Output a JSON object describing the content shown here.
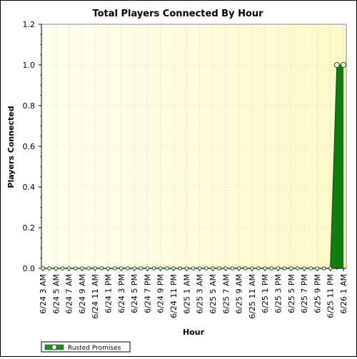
{
  "chart_data": {
    "type": "area",
    "title": "Total Players Connected By Hour",
    "xlabel": "Hour",
    "ylabel": "Players Connected",
    "categories": [
      "6/24 3 AM",
      "6/24 4 AM",
      "6/24 5 AM",
      "6/24 6 AM",
      "6/24 7 AM",
      "6/24 8 AM",
      "6/24 9 AM",
      "6/24 10 AM",
      "6/24 11 AM",
      "6/24 12 PM",
      "6/24 1 PM",
      "6/24 2 PM",
      "6/24 3 PM",
      "6/24 4 PM",
      "6/24 5 PM",
      "6/24 6 PM",
      "6/24 7 PM",
      "6/24 8 PM",
      "6/24 9 PM",
      "6/24 10 PM",
      "6/24 11 PM",
      "6/25 12 AM",
      "6/25 1 AM",
      "6/25 2 AM",
      "6/25 3 AM",
      "6/25 4 AM",
      "6/25 5 AM",
      "6/25 6 AM",
      "6/25 7 AM",
      "6/25 8 AM",
      "6/25 9 AM",
      "6/25 10 AM",
      "6/25 11 AM",
      "6/25 12 PM",
      "6/25 1 PM",
      "6/25 2 PM",
      "6/25 3 PM",
      "6/25 4 PM",
      "6/25 5 PM",
      "6/25 6 PM",
      "6/25 7 PM",
      "6/25 8 PM",
      "6/25 9 PM",
      "6/25 10 PM",
      "6/25 11 PM",
      "6/26 12 AM",
      "6/26 1 AM"
    ],
    "x_tick_labels": [
      "6/24 3 AM",
      "6/24 5 AM",
      "6/24 7 AM",
      "6/24 9 AM",
      "6/24 11 AM",
      "6/24 1 PM",
      "6/24 3 PM",
      "6/24 5 PM",
      "6/24 7 PM",
      "6/24 9 PM",
      "6/24 11 PM",
      "6/25 1 AM",
      "6/25 3 AM",
      "6/25 5 AM",
      "6/25 7 AM",
      "6/25 9 AM",
      "6/25 11 AM",
      "6/25 1 PM",
      "6/25 3 PM",
      "6/25 5 PM",
      "6/25 7 PM",
      "6/25 9 PM",
      "6/25 11 PM",
      "6/26 1 AM"
    ],
    "series": [
      {
        "name": "Rusted Promises",
        "color": "#1e8c1e",
        "values": [
          0,
          0,
          0,
          0,
          0,
          0,
          0,
          0,
          0,
          0,
          0,
          0,
          0,
          0,
          0,
          0,
          0,
          0,
          0,
          0,
          0,
          0,
          0,
          0,
          0,
          0,
          0,
          0,
          0,
          0,
          0,
          0,
          0,
          0,
          0,
          0,
          0,
          0,
          0,
          0,
          0,
          0,
          0,
          0,
          0,
          1,
          1
        ]
      }
    ],
    "ylim": [
      0,
      1.2
    ],
    "y_ticks": [
      "0.0",
      "0.2",
      "0.4",
      "0.6",
      "0.8",
      "1.0",
      "1.2"
    ],
    "grid": true,
    "legend_position": "bottom-left",
    "colors": {
      "plot_background": "#fffde0",
      "grid": "#b8b8a0",
      "series_fill": "#1e8c1e",
      "marker_fill": "#ffffff"
    }
  }
}
